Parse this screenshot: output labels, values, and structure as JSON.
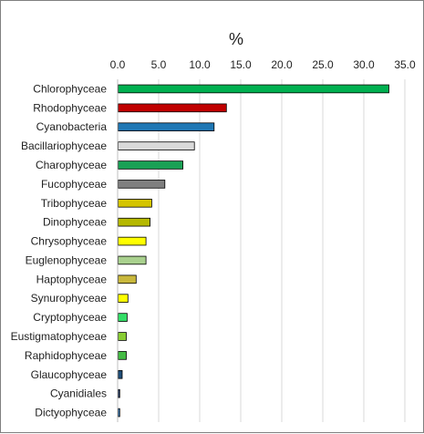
{
  "chart_data": {
    "type": "bar",
    "orientation": "horizontal",
    "axis_title": "%",
    "xlim": [
      0,
      35
    ],
    "xticks": [
      "0.0",
      "5.0",
      "10.0",
      "15.0",
      "20.0",
      "25.0",
      "30.0",
      "35.0"
    ],
    "grid": true,
    "axis_position": "top",
    "categories": [
      "Chlorophyceae",
      "Rhodophyceae",
      "Cyanobacteria",
      "Bacillariophyceae",
      "Charophyceae",
      "Fucophyceae",
      "Tribophyceae",
      "Dinophyceae",
      "Chrysophyceae",
      "Euglenophyceae",
      "Haptophyceae",
      "Synurophyceae",
      "Cryptophyceae",
      "Eustigmatophyceae",
      "Raphidophyceae",
      "Glaucophyceae",
      "Cyanidiales",
      "Dictyophyceae"
    ],
    "values": [
      33.0,
      13.2,
      11.7,
      9.3,
      7.9,
      5.7,
      4.1,
      3.9,
      3.4,
      3.4,
      2.2,
      1.2,
      1.1,
      1.0,
      1.0,
      0.5,
      0.2,
      0.2
    ],
    "colors": [
      "#00b050",
      "#c00000",
      "#1f77b4",
      "#d9d9d9",
      "#1aa055",
      "#7f7f7f",
      "#d4c400",
      "#b5b800",
      "#ffff00",
      "#a9d18e",
      "#c9b83c",
      "#ffff00",
      "#33dd66",
      "#88cc33",
      "#44bb44",
      "#1f4e79",
      "#1f3864",
      "#2e75b6"
    ]
  }
}
